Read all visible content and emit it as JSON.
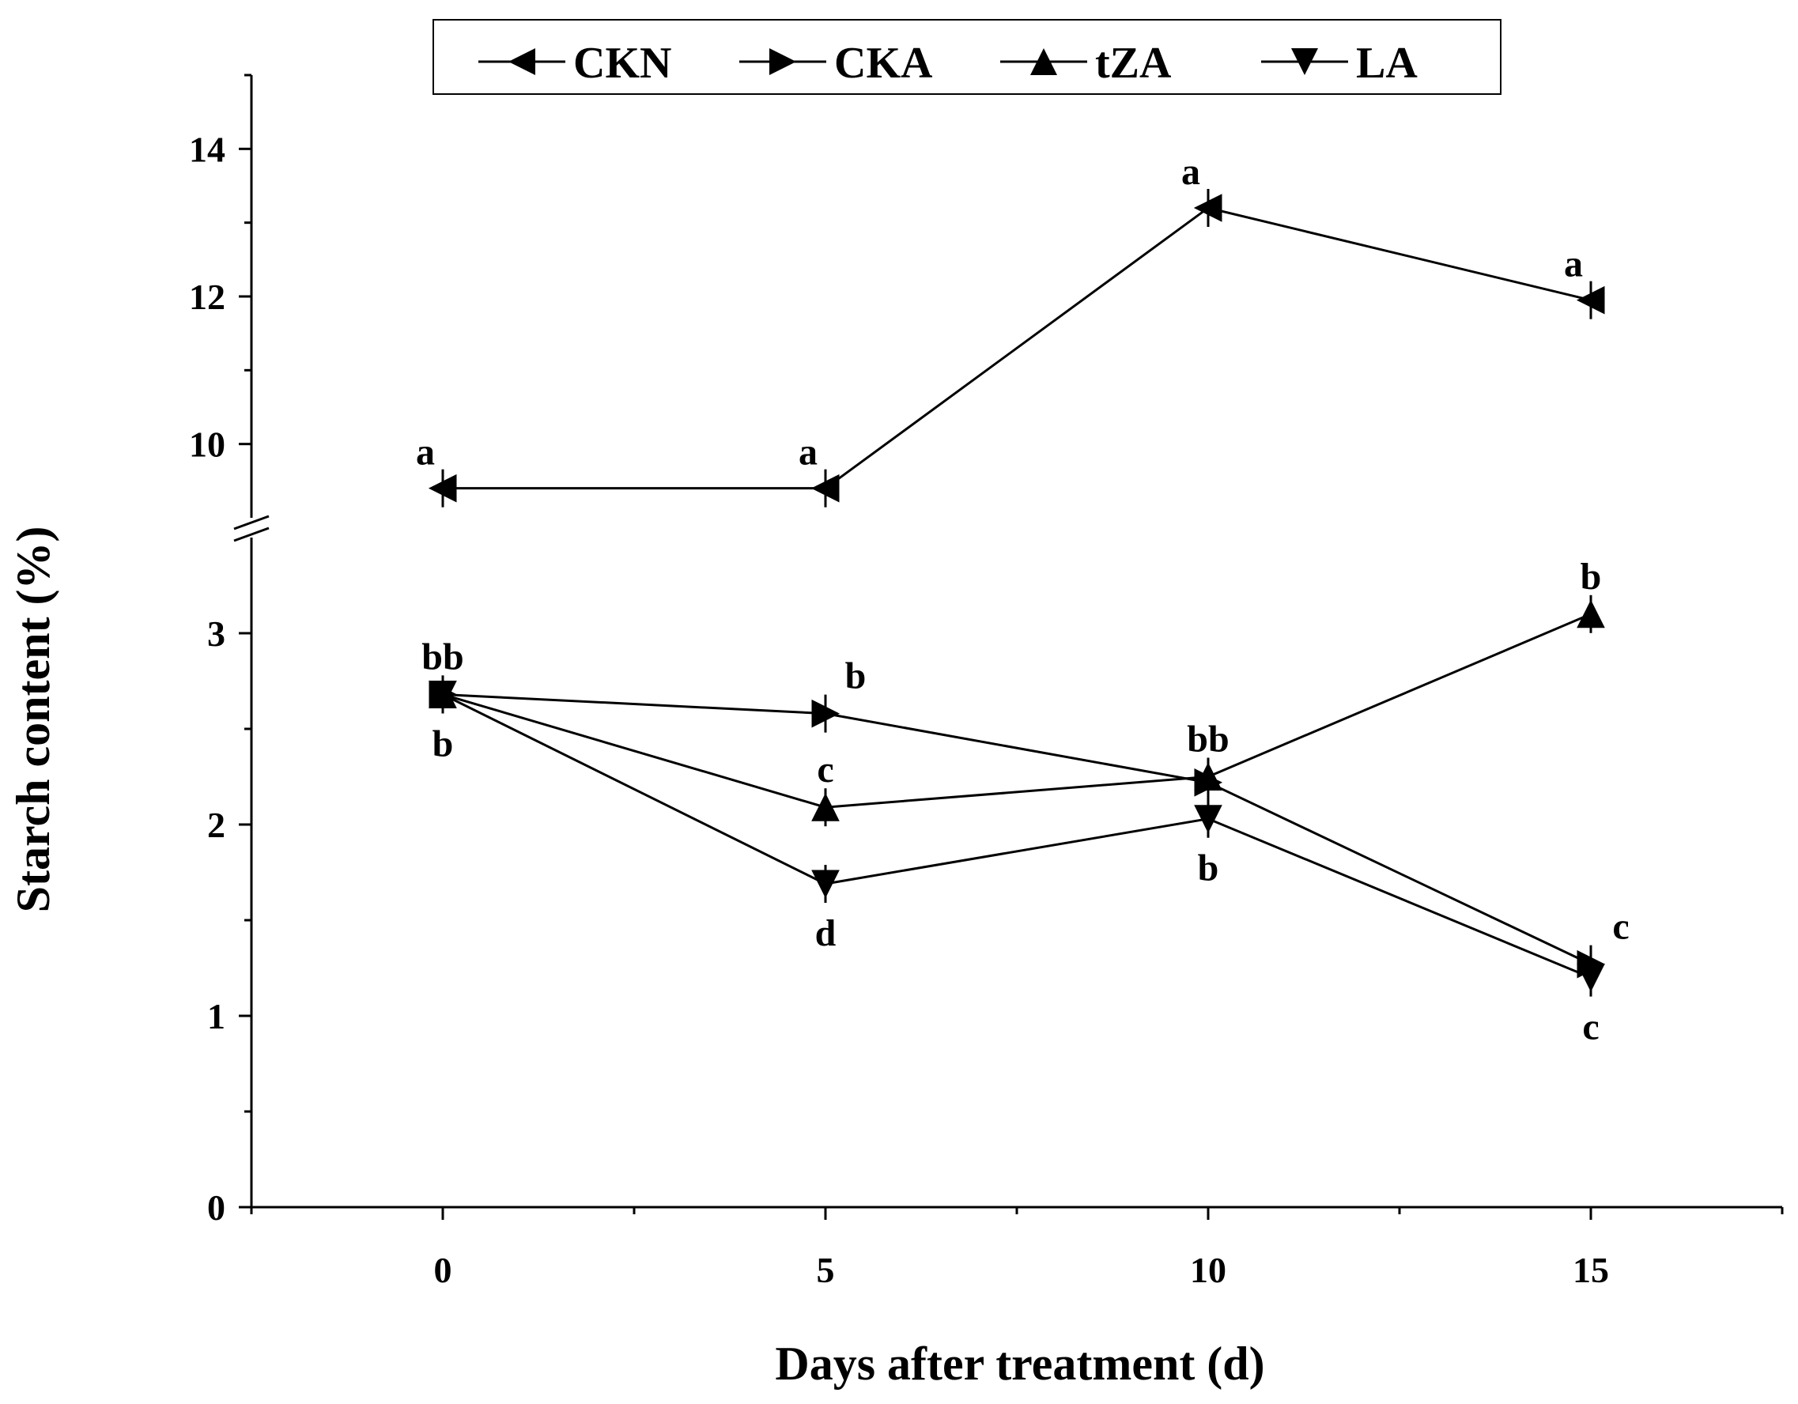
{
  "chart_data": {
    "type": "line",
    "ylabel": "Starch content (%)",
    "xlabel": "Days after treatment (d)",
    "x_ticks": [
      "0",
      "5",
      "10",
      "15"
    ],
    "y_ticks_lower": [
      "0",
      "1",
      "2",
      "3"
    ],
    "y_ticks_upper": [
      "10",
      "12",
      "14"
    ],
    "x_range": [
      -2.5,
      17.5
    ],
    "y_range_lower": [
      0,
      3.5
    ],
    "y_range_upper": [
      9.0,
      15.0
    ],
    "axis_break": true,
    "legend_position": "top",
    "series": [
      {
        "name": "CKN",
        "marker": "triangle-left",
        "x": [
          0,
          5,
          10,
          15
        ],
        "values": [
          9.4,
          9.4,
          13.2,
          11.95
        ]
      },
      {
        "name": "CKA",
        "marker": "triangle-right",
        "x": [
          0,
          5,
          10,
          15
        ],
        "values": [
          2.68,
          2.58,
          2.22,
          1.27
        ]
      },
      {
        "name": "tZA",
        "marker": "triangle-up",
        "x": [
          0,
          5,
          10,
          15
        ],
        "values": [
          2.68,
          2.09,
          2.25,
          3.1
        ]
      },
      {
        "name": "LA",
        "marker": "triangle-down",
        "x": [
          0,
          5,
          10,
          15
        ],
        "values": [
          2.68,
          1.69,
          2.03,
          1.2
        ]
      }
    ],
    "annotations": [
      {
        "text": "a",
        "x": 0,
        "y": 9.4,
        "pos": "above-left"
      },
      {
        "text": "a",
        "x": 5,
        "y": 9.4,
        "pos": "above-left"
      },
      {
        "text": "a",
        "x": 10,
        "y": 13.2,
        "pos": "above-left"
      },
      {
        "text": "a",
        "x": 15,
        "y": 11.95,
        "pos": "above-left"
      },
      {
        "text": "bb",
        "x": 0,
        "y": 2.68,
        "pos": "above"
      },
      {
        "text": "b",
        "x": 0,
        "y": 2.68,
        "pos": "below"
      },
      {
        "text": "b",
        "x": 5,
        "y": 2.58,
        "pos": "above-right"
      },
      {
        "text": "c",
        "x": 5,
        "y": 2.09,
        "pos": "above"
      },
      {
        "text": "d",
        "x": 5,
        "y": 1.69,
        "pos": "below"
      },
      {
        "text": "bb",
        "x": 10,
        "y": 2.25,
        "pos": "above"
      },
      {
        "text": "b",
        "x": 10,
        "y": 2.03,
        "pos": "below"
      },
      {
        "text": "b",
        "x": 15,
        "y": 3.1,
        "pos": "above"
      },
      {
        "text": "c",
        "x": 15,
        "y": 1.27,
        "pos": "above-right"
      },
      {
        "text": "c",
        "x": 15,
        "y": 1.2,
        "pos": "below"
      }
    ]
  }
}
